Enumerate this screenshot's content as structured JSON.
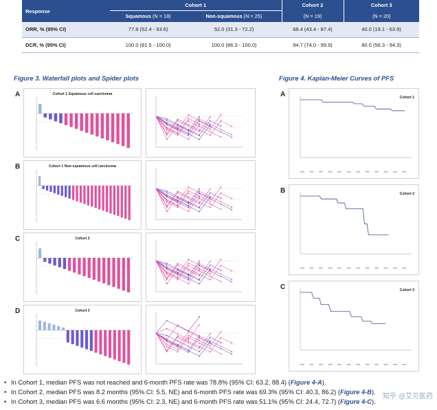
{
  "table": {
    "head": {
      "response": "Response",
      "cohort1": "Cohort 1",
      "cohort2": "Cohort 2",
      "cohort3": "Cohort 3",
      "squamous": "Squamous",
      "squamous_n": "(N = 18)",
      "nonsquamous": "Non-squamous",
      "nonsquamous_n": "(N = 25)",
      "cohort2_n": "(N = 19)",
      "cohort3_n": "(N = 20)"
    },
    "rows": [
      {
        "label": "ORR, % (95% CI)",
        "values": [
          "77.8 (52.4 - 93.6)",
          "52.0 (31.3 - 72.2)",
          "68.4 (43.4 - 87.4)",
          "40.0 (19.1 - 63.9)"
        ]
      },
      {
        "label": "DCR, % (95% CI)",
        "values": [
          "100.0 (81.5 - 100.0)",
          "100.0 (86.3 - 100.0)",
          "94.7 (74.0 - 99.9)",
          "80.0 (56.3 - 94.3)"
        ]
      }
    ]
  },
  "fig3": {
    "title": "Figure 3. Waterfall plots and Spider plots",
    "panels": [
      {
        "letter": "A",
        "title": "Cohort 1 Squamous cell carcinoma"
      },
      {
        "letter": "B",
        "title": "Cohort 1 Non-squamous cell carcinoma"
      },
      {
        "letter": "C",
        "title": "Cohort 2"
      },
      {
        "letter": "D",
        "title": "Cohort 3"
      }
    ]
  },
  "fig4": {
    "title": "Figure 4. Kaplan-Meier Curves of PFS",
    "panels": [
      {
        "letter": "A",
        "title": "Cohort 1"
      },
      {
        "letter": "B",
        "title": "Cohort 2"
      },
      {
        "letter": "C",
        "title": "Cohort 3"
      }
    ]
  },
  "bullets": [
    {
      "text": "In Cohort 1, median PFS was not reached and 6-month PFS rate was 78.8% (95% CI: 63.2, 88.4) (",
      "ref": "Figure 4-A",
      "end": ")."
    },
    {
      "text": "In Cohort 2, median PFS was 8.2 months (95% CI: 5.5, NE) and 6-month PFS rate was 69.3% (95% CI: 40.3, 86.2) (",
      "ref": "Figure 4-B",
      "end": ")."
    },
    {
      "text": "In Cohort 3, median PFS was 6.6 months (95% CI: 2.3, NE) and 6-month PFS rate was 51.1% (95% CI: 24.4, 72.7) (",
      "ref": "Figure 4-C",
      "end": ")."
    }
  ],
  "watermark": "知乎 @艾贝医药",
  "colors": {
    "header": "#2c4f8f",
    "row_alt": "#e3e9f4",
    "pink": "#e0529c",
    "purple": "#6a5acd",
    "light_blue": "#9fb6e0",
    "km_line": "#3b4f8f"
  }
}
